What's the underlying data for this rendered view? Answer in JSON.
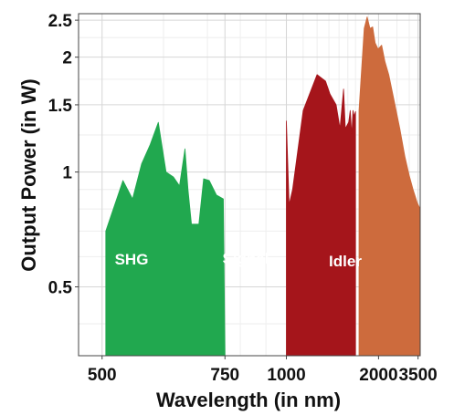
{
  "chart_data": {
    "type": "area",
    "title": "",
    "xlabel": "Wavelength (in nm)",
    "ylabel": "Output Power (in W)",
    "x_scale": "reciprocal",
    "y_scale": "log",
    "xlim": [
      470,
      3650
    ],
    "ylim": [
      0.33,
      2.6
    ],
    "grid": true,
    "x_ticks": [
      500,
      750,
      1000,
      2000,
      3500
    ],
    "x_tick_labels": [
      "500",
      "750",
      "1000",
      "2000",
      "3500"
    ],
    "y_ticks": [
      0.5,
      1,
      1.5,
      2,
      2.5
    ],
    "y_tick_labels": [
      "0.5",
      "1",
      "1.5",
      "2",
      "2.5"
    ],
    "series": [
      {
        "name": "SHG",
        "color": "#21a84f",
        "points": [
          [
            505,
            0.7
          ],
          [
            530,
            0.95
          ],
          [
            545,
            0.85
          ],
          [
            560,
            1.05
          ],
          [
            575,
            1.18
          ],
          [
            590,
            1.35
          ],
          [
            605,
            1.0
          ],
          [
            620,
            0.97
          ],
          [
            633,
            0.92
          ],
          [
            645,
            1.15
          ],
          [
            652,
            0.9
          ],
          [
            660,
            0.73
          ],
          [
            678,
            0.73
          ],
          [
            690,
            0.96
          ],
          [
            705,
            0.95
          ],
          [
            725,
            0.87
          ],
          [
            745,
            0.85
          ],
          [
            750,
            0.33
          ],
          [
            505,
            0.33
          ]
        ]
      },
      {
        "name": "Signal",
        "color": "#a5151b",
        "points": [
          [
            1000,
            1.36
          ],
          [
            1015,
            0.82
          ],
          [
            1035,
            0.9
          ],
          [
            1100,
            1.45
          ],
          [
            1200,
            1.8
          ],
          [
            1270,
            1.73
          ],
          [
            1310,
            1.6
          ],
          [
            1370,
            1.5
          ],
          [
            1410,
            1.3
          ],
          [
            1450,
            1.65
          ],
          [
            1470,
            1.3
          ],
          [
            1510,
            1.35
          ],
          [
            1530,
            1.45
          ],
          [
            1550,
            1.25
          ],
          [
            1565,
            1.45
          ],
          [
            1580,
            1.4
          ],
          [
            1600,
            1.44
          ],
          [
            1600,
            0.33
          ],
          [
            1000,
            0.33
          ]
        ]
      },
      {
        "name": "Idler",
        "color": "#cd6b3d",
        "points": [
          [
            1650,
            0.33
          ],
          [
            1650,
            1.45
          ],
          [
            1730,
            2.38
          ],
          [
            1780,
            2.55
          ],
          [
            1830,
            2.38
          ],
          [
            1880,
            2.4
          ],
          [
            1930,
            2.18
          ],
          [
            1990,
            2.1
          ],
          [
            2070,
            2.15
          ],
          [
            2150,
            1.95
          ],
          [
            2250,
            1.8
          ],
          [
            2400,
            1.55
          ],
          [
            2600,
            1.3
          ],
          [
            2800,
            1.1
          ],
          [
            3000,
            0.98
          ],
          [
            3200,
            0.9
          ],
          [
            3450,
            0.83
          ],
          [
            3650,
            0.8
          ],
          [
            3650,
            0.33
          ]
        ]
      }
    ]
  }
}
